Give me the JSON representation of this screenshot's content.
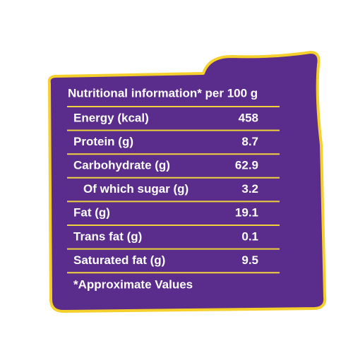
{
  "label": {
    "title": "Nutritional information* per 100 g",
    "rows": [
      {
        "name": "Energy (kcal)",
        "value": 458
      },
      {
        "name": "Protein (g)",
        "value": 8.7
      },
      {
        "name": "Carbohydrate (g)",
        "value": 62.9
      },
      {
        "name": "Of which sugar (g)",
        "value": 3.2
      },
      {
        "name": "Fat (g)",
        "value": 19.1
      },
      {
        "name": "Trans fat (g)",
        "value": 0.1
      },
      {
        "name": "Saturated fat (g)",
        "value": 9.5
      }
    ],
    "footnote": "*Approximate Values"
  }
}
